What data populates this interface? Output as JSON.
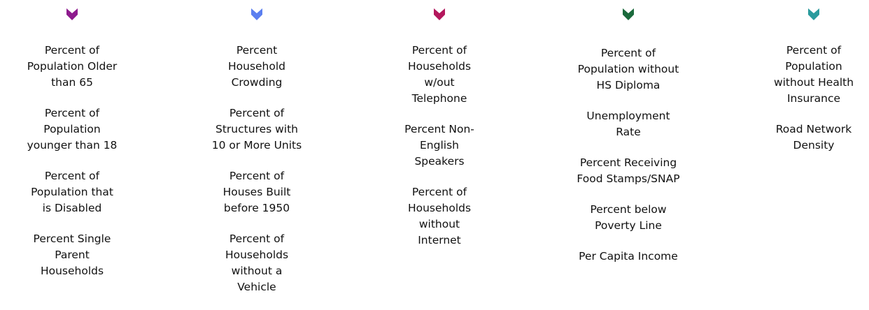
{
  "columns": [
    {
      "items": [
        [
          "Percent of",
          "Population Older",
          "than 65"
        ],
        [
          "Percent of",
          "Population",
          "younger than 18"
        ],
        [
          "Percent of",
          "Population that",
          "is Disabled"
        ],
        [
          "Percent Single",
          "Parent",
          "Households"
        ]
      ]
    },
    {
      "items": [
        [
          "Percent",
          "Household",
          "Crowding"
        ],
        [
          "Percent of",
          "Structures with",
          "10 or More Units"
        ],
        [
          "Percent of",
          "Houses Built",
          "before 1950"
        ],
        [
          "Percent of",
          "Households",
          "without a",
          "Vehicle"
        ]
      ]
    },
    {
      "items": [
        [
          "Percent of",
          "Households",
          "w/out",
          "Telephone"
        ],
        [
          "Percent Non-",
          "English",
          "Speakers"
        ],
        [
          "Percent of",
          "Households",
          "without",
          "Internet"
        ]
      ]
    },
    {
      "items": [
        [
          "Percent of",
          "Population without",
          "HS Diploma"
        ],
        [
          "Unemployment",
          "Rate"
        ],
        [
          "Percent Receiving",
          "Food Stamps/SNAP"
        ],
        [
          "Percent below",
          "Poverty Line"
        ],
        [
          "Per Capita Income"
        ]
      ]
    },
    {
      "items": [
        [
          "Percent of",
          "Population",
          "without Health",
          "Insurance"
        ],
        [
          "Road Network",
          "Density"
        ]
      ]
    }
  ]
}
